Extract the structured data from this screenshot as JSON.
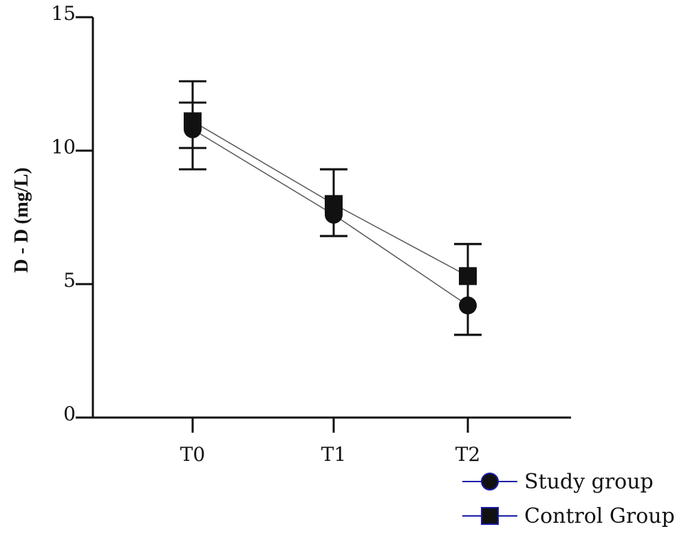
{
  "chart_data": {
    "type": "line",
    "title": "",
    "xlabel": "",
    "ylabel": "D - D (mg/L)",
    "categories": [
      "T0",
      "T1",
      "T2"
    ],
    "ylim": [
      0,
      15
    ],
    "yticks": [
      0,
      5,
      10,
      15
    ],
    "grid": false,
    "legend_position": "bottom-right",
    "series": [
      {
        "name": "Study group",
        "marker": "circle",
        "values": [
          10.8,
          7.6,
          4.2
        ],
        "error_low": [
          9.3,
          6.8,
          3.1
        ],
        "error_high": [
          11.8,
          9.3,
          6.5
        ]
      },
      {
        "name": "Control Group",
        "marker": "square",
        "values": [
          11.1,
          8.0,
          5.3
        ],
        "error_low": [
          10.1,
          6.8,
          3.1
        ],
        "error_high": [
          12.6,
          9.3,
          6.5
        ]
      }
    ],
    "colors": {
      "axis": "#111111",
      "markers": "#111111",
      "lines": "#555555",
      "legend_line": "#1a1aa6",
      "legend_marker_outline": "#1a1aa6"
    }
  }
}
